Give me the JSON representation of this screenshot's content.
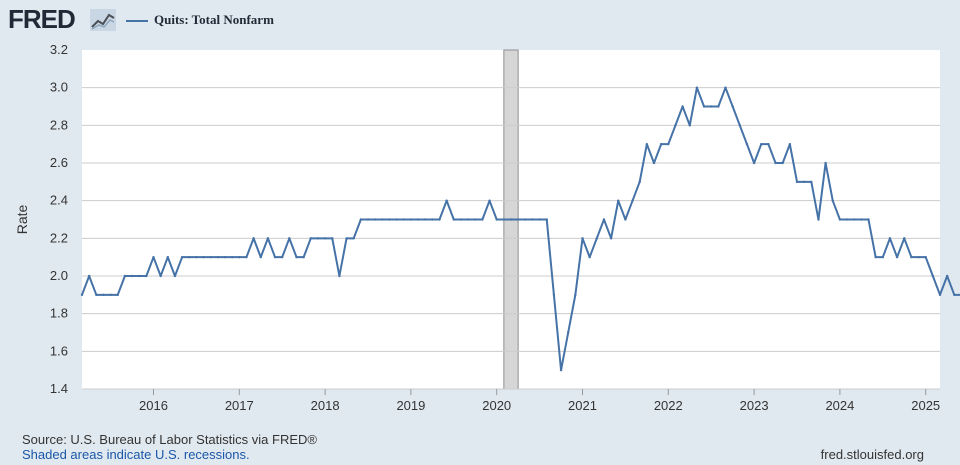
{
  "header": {
    "logo_text": "FRED",
    "logo_icon": "trend-chart-icon",
    "legend_label": "Quits: Total Nonfarm"
  },
  "colors": {
    "series": "#4572a7",
    "recession_shade": "#d6d6d6",
    "plot_background": "#ffffff",
    "page_background": "#e1e9f0",
    "gridline": "#cccccc",
    "footer_link": "#1a57a8"
  },
  "footer": {
    "source": "Source: U.S. Bureau of Labor Statistics via FRED®",
    "recession_note": "Shaded areas indicate U.S. recessions.",
    "site": "fred.stlouisfed.org"
  },
  "chart_data": {
    "type": "line",
    "title": "",
    "xlabel": "",
    "ylabel": "Rate",
    "ylim": [
      1.4,
      3.2
    ],
    "xlim": [
      "2015-03",
      "2025-03"
    ],
    "grid": "horizontal",
    "legend_position": "top-left",
    "y_ticks": [
      "1.4",
      "1.6",
      "1.8",
      "2.0",
      "2.2",
      "2.4",
      "2.6",
      "2.8",
      "3.0",
      "3.2"
    ],
    "x_ticks": [
      "2016",
      "2017",
      "2018",
      "2019",
      "2020",
      "2021",
      "2022",
      "2023",
      "2024",
      "2025"
    ],
    "recessions": [
      {
        "start": "2020-02",
        "end": "2020-04"
      }
    ],
    "series": [
      {
        "name": "Quits: Total Nonfarm",
        "start": "2015-03",
        "frequency": "monthly",
        "values": [
          1.9,
          2.0,
          1.9,
          1.9,
          1.9,
          1.9,
          2.0,
          2.0,
          2.0,
          2.0,
          2.1,
          2.0,
          2.1,
          2.0,
          2.1,
          2.1,
          2.1,
          2.1,
          2.1,
          2.1,
          2.1,
          2.1,
          2.1,
          2.1,
          2.2,
          2.1,
          2.2,
          2.1,
          2.1,
          2.2,
          2.1,
          2.1,
          2.2,
          2.2,
          2.2,
          2.2,
          2.0,
          2.2,
          2.2,
          2.3,
          2.3,
          2.3,
          2.3,
          2.3,
          2.3,
          2.3,
          2.3,
          2.3,
          2.3,
          2.3,
          2.3,
          2.4,
          2.3,
          2.3,
          2.3,
          2.3,
          2.3,
          2.4,
          2.3,
          2.3,
          2.3,
          2.3,
          2.3,
          2.3,
          2.3,
          2.3,
          1.9,
          1.5,
          1.7,
          1.9,
          2.2,
          2.1,
          2.2,
          2.3,
          2.2,
          2.4,
          2.3,
          2.4,
          2.5,
          2.7,
          2.6,
          2.7,
          2.7,
          2.8,
          2.9,
          2.8,
          3.0,
          2.9,
          2.9,
          2.9,
          3.0,
          2.9,
          2.8,
          2.7,
          2.6,
          2.7,
          2.7,
          2.6,
          2.6,
          2.7,
          2.5,
          2.5,
          2.5,
          2.3,
          2.6,
          2.4,
          2.3,
          2.3,
          2.3,
          2.3,
          2.3,
          2.1,
          2.1,
          2.2,
          2.1,
          2.2,
          2.1,
          2.1,
          2.1,
          2.0,
          1.9,
          2.0,
          1.9,
          1.9,
          2.0,
          2.0
        ]
      }
    ]
  }
}
